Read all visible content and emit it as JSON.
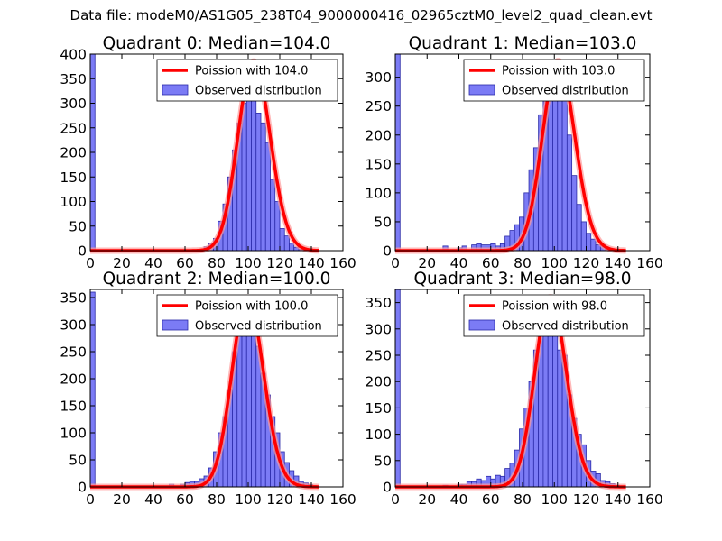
{
  "figure_title": "Data file: modeM0/AS1G05_238T04_9000000416_02965cztM0_level2_quad_clean.evt",
  "colors": {
    "bar_fill": "#7b7bf5",
    "bar_edge": "#2a2aa8",
    "curve": "#ff0000",
    "curve_glow": "#ff9a9a"
  },
  "legend_labels": {
    "observed": "Observed distribution"
  },
  "chart_data": [
    {
      "type": "bar",
      "title": "Quadrant 0: Median=104.0",
      "poisson_label": "Poission with 104.0",
      "median": 104.0,
      "xlim": [
        0,
        160
      ],
      "ylim": [
        0,
        400
      ],
      "xticks": [
        0,
        20,
        40,
        60,
        80,
        100,
        120,
        140,
        160
      ],
      "yticks": [
        0,
        50,
        100,
        150,
        200,
        250,
        300,
        350,
        400
      ],
      "bin_width": 3,
      "bin_starts": [
        0,
        66,
        69,
        72,
        75,
        78,
        81,
        84,
        87,
        90,
        93,
        96,
        99,
        102,
        105,
        108,
        111,
        114,
        117,
        120,
        123,
        126,
        129,
        132,
        135,
        138,
        141
      ],
      "values": [
        400,
        2,
        3,
        8,
        15,
        25,
        60,
        95,
        150,
        205,
        260,
        300,
        375,
        345,
        280,
        260,
        220,
        145,
        100,
        45,
        30,
        15,
        7,
        3,
        2,
        1,
        0
      ],
      "poisson_peak": 385
    },
    {
      "type": "bar",
      "title": "Quadrant 1: Median=103.0",
      "poisson_label": "Poission with 103.0",
      "median": 103.0,
      "xlim": [
        0,
        160
      ],
      "ylim": [
        0,
        340
      ],
      "xticks": [
        0,
        20,
        40,
        60,
        80,
        100,
        120,
        140,
        160
      ],
      "yticks": [
        0,
        50,
        100,
        150,
        200,
        250,
        300
      ],
      "bin_width": 3,
      "bin_starts": [
        0,
        30,
        39,
        42,
        48,
        51,
        54,
        57,
        60,
        63,
        66,
        69,
        72,
        75,
        78,
        81,
        84,
        87,
        90,
        93,
        96,
        99,
        102,
        105,
        108,
        111,
        114,
        117,
        120,
        123,
        126,
        129,
        132,
        135
      ],
      "values": [
        340,
        8,
        5,
        8,
        10,
        12,
        10,
        10,
        12,
        8,
        12,
        25,
        35,
        45,
        58,
        100,
        140,
        178,
        235,
        270,
        305,
        320,
        275,
        260,
        200,
        130,
        80,
        50,
        30,
        20,
        10,
        10,
        5,
        3
      ],
      "poisson_peak": 328
    },
    {
      "type": "bar",
      "title": "Quadrant 2: Median=100.0",
      "poisson_label": "Poission with 100.0",
      "median": 100.0,
      "xlim": [
        0,
        160
      ],
      "ylim": [
        0,
        365
      ],
      "xticks": [
        0,
        20,
        40,
        60,
        80,
        100,
        120,
        140,
        160
      ],
      "yticks": [
        0,
        50,
        100,
        150,
        200,
        250,
        300,
        350
      ],
      "bin_width": 3,
      "bin_starts": [
        0,
        50,
        57,
        60,
        63,
        66,
        69,
        72,
        75,
        78,
        81,
        84,
        87,
        90,
        93,
        96,
        99,
        102,
        105,
        108,
        111,
        114,
        117,
        120,
        123,
        126,
        129,
        132,
        135,
        138,
        141
      ],
      "values": [
        360,
        5,
        5,
        8,
        10,
        10,
        15,
        20,
        35,
        65,
        100,
        130,
        180,
        250,
        300,
        350,
        350,
        300,
        260,
        210,
        170,
        130,
        100,
        65,
        45,
        30,
        20,
        10,
        7,
        4,
        2
      ],
      "poisson_peak": 350
    },
    {
      "type": "bar",
      "title": "Quadrant 3: Median=98.0",
      "poisson_label": "Poission with 98.0",
      "median": 98.0,
      "xlim": [
        0,
        160
      ],
      "ylim": [
        0,
        375
      ],
      "xticks": [
        0,
        20,
        40,
        60,
        80,
        100,
        120,
        140,
        160
      ],
      "yticks": [
        0,
        50,
        100,
        150,
        200,
        250,
        300,
        350
      ],
      "bin_width": 3,
      "bin_starts": [
        0,
        30,
        39,
        42,
        45,
        48,
        51,
        54,
        57,
        60,
        63,
        66,
        69,
        72,
        75,
        78,
        81,
        84,
        87,
        90,
        93,
        96,
        99,
        102,
        105,
        108,
        111,
        114,
        117,
        120,
        123,
        126,
        129,
        132,
        135,
        138,
        141
      ],
      "values": [
        375,
        3,
        5,
        5,
        10,
        10,
        15,
        12,
        20,
        15,
        22,
        20,
        35,
        45,
        70,
        110,
        150,
        200,
        260,
        290,
        350,
        345,
        310,
        260,
        250,
        175,
        130,
        100,
        80,
        50,
        30,
        25,
        12,
        10,
        6,
        3,
        1
      ],
      "poisson_peak": 360
    }
  ]
}
